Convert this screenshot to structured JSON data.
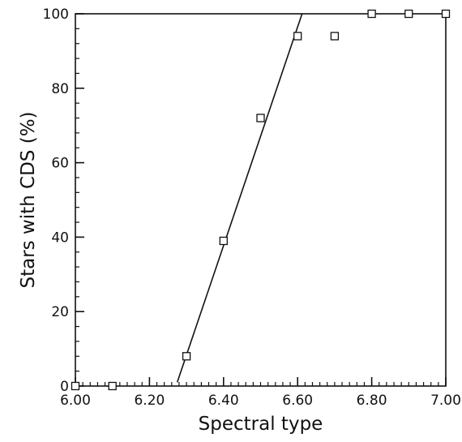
{
  "chart_data": {
    "type": "scatter",
    "xlabel": "Spectral type",
    "ylabel": "Stars with CDS (%)",
    "xlim": [
      6.0,
      7.0
    ],
    "ylim": [
      0,
      100
    ],
    "x_major_ticks": [
      6.0,
      6.2,
      6.4,
      6.6,
      6.8,
      7.0
    ],
    "x_tick_labels": [
      "6.00",
      "6.20",
      "6.40",
      "6.60",
      "6.80",
      "7.00"
    ],
    "y_major_ticks": [
      0,
      20,
      40,
      60,
      80,
      100
    ],
    "y_tick_labels": [
      "0",
      "20",
      "40",
      "60",
      "80",
      "100"
    ],
    "x_minor_step": 0.02,
    "y_minor_step": 4,
    "grid": false,
    "marker": "open-square",
    "points": [
      {
        "x": 6.0,
        "y": 0
      },
      {
        "x": 6.1,
        "y": 0
      },
      {
        "x": 6.3,
        "y": 8
      },
      {
        "x": 6.4,
        "y": 39
      },
      {
        "x": 6.5,
        "y": 72
      },
      {
        "x": 6.6,
        "y": 94
      },
      {
        "x": 6.7,
        "y": 94
      },
      {
        "x": 6.8,
        "y": 100
      },
      {
        "x": 6.9,
        "y": 100
      },
      {
        "x": 7.0,
        "y": 100
      }
    ],
    "fit_line": {
      "x": [
        6.275,
        6.612
      ],
      "y": [
        1,
        100
      ]
    }
  }
}
